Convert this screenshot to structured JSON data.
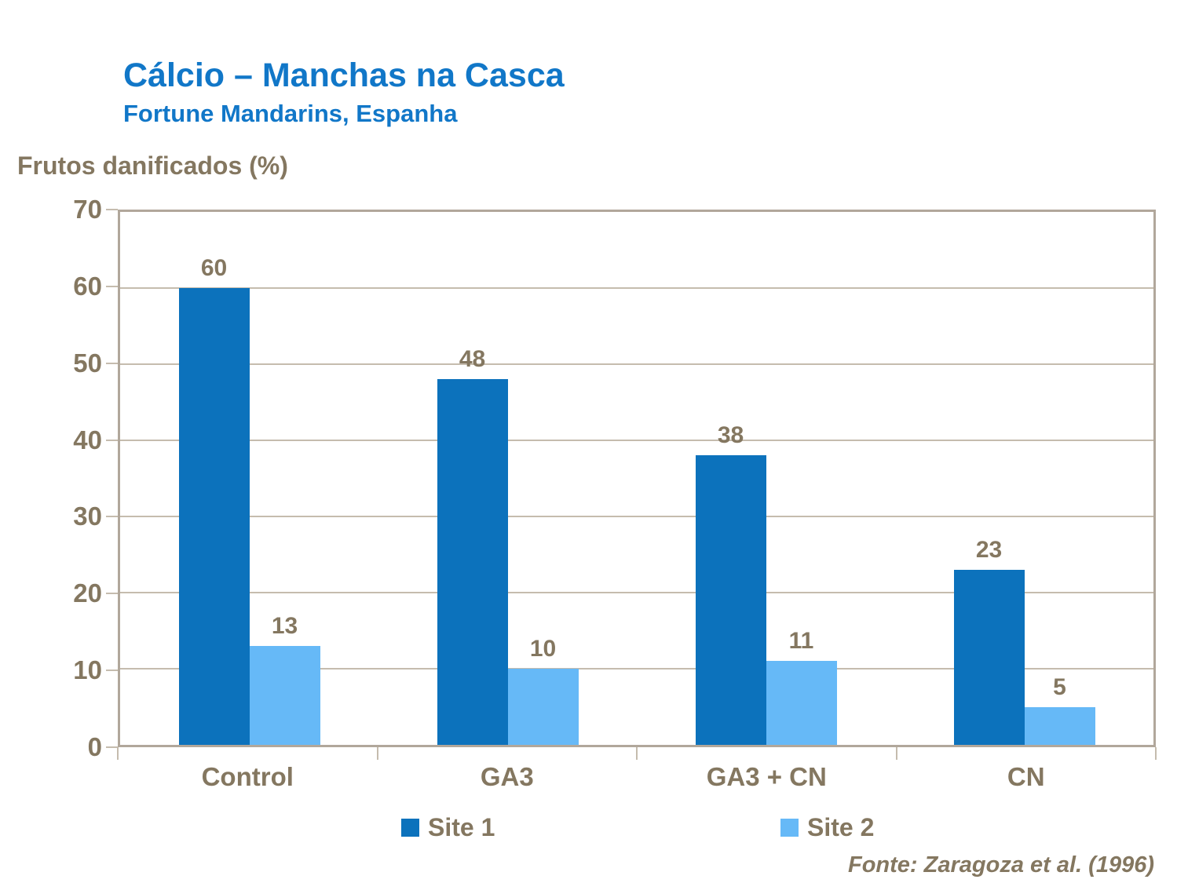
{
  "colors": {
    "heading_blue": "#1177C8",
    "text_brown": "#847760",
    "gridline": "#C5BCAE",
    "axis_border": "#B1A79B",
    "site1_blue": "#0C72BC",
    "site2_blue": "#66B9F7"
  },
  "legend": {
    "site1_label": "Site 1",
    "site2_label": "Site 2"
  },
  "chart_data": {
    "type": "bar",
    "title": "Cálcio – Manchas na Casca",
    "subtitle": "Fortune Mandarins, Espanha",
    "ylabel": "Frutos danificados (%)",
    "xlabel": "",
    "categories": [
      "Control",
      "GA3",
      "GA3 + CN",
      "CN"
    ],
    "series": [
      {
        "name": "Site 1",
        "color": "#0C72BC",
        "values": [
          60,
          48,
          38,
          23
        ]
      },
      {
        "name": "Site 2",
        "color": "#66B9F7",
        "values": [
          13,
          10,
          11,
          5
        ]
      }
    ],
    "ylim": [
      0,
      70
    ],
    "ytick_step": 10,
    "grid": true,
    "legend_position": "bottom",
    "source": "Fonte: Zaragoza et al. (1996)"
  }
}
